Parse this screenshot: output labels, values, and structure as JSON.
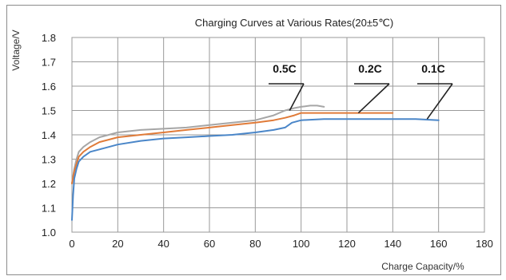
{
  "chart_data": {
    "type": "line",
    "title": "Charging Curves at Various Rates(20±5℃)",
    "xlabel": "Charge Capacity/%",
    "ylabel": "Voltage/V",
    "xlim": [
      0,
      180
    ],
    "ylim": [
      1.0,
      1.8
    ],
    "x_ticks": [
      "0",
      "20",
      "40",
      "60",
      "80",
      "100",
      "120",
      "140",
      "160",
      "180"
    ],
    "y_ticks": [
      "1.0",
      "1.1",
      "1.2",
      "1.3",
      "1.4",
      "1.5",
      "1.6",
      "1.7",
      "1.8"
    ],
    "grid": true,
    "series": [
      {
        "name": "0.5C",
        "color": "#a6a6a6",
        "x": [
          0,
          1,
          2,
          3,
          5,
          8,
          12,
          20,
          30,
          40,
          50,
          60,
          70,
          80,
          88,
          93,
          97,
          100,
          104,
          107,
          110
        ],
        "y": [
          1.2,
          1.26,
          1.3,
          1.33,
          1.35,
          1.37,
          1.39,
          1.41,
          1.42,
          1.425,
          1.43,
          1.44,
          1.45,
          1.46,
          1.48,
          1.5,
          1.51,
          1.515,
          1.52,
          1.52,
          1.515
        ]
      },
      {
        "name": "0.2C",
        "color": "#e07b39",
        "x": [
          0,
          1,
          2,
          3,
          5,
          8,
          12,
          20,
          30,
          40,
          50,
          60,
          70,
          80,
          88,
          93,
          97,
          100,
          110,
          120,
          130,
          140
        ],
        "y": [
          1.2,
          1.25,
          1.28,
          1.31,
          1.33,
          1.35,
          1.37,
          1.39,
          1.4,
          1.41,
          1.42,
          1.43,
          1.44,
          1.45,
          1.46,
          1.47,
          1.48,
          1.49,
          1.49,
          1.49,
          1.49,
          1.49
        ]
      },
      {
        "name": "0.1C",
        "color": "#4a86c8",
        "x": [
          0,
          0.5,
          1,
          2,
          3,
          5,
          8,
          12,
          20,
          30,
          40,
          50,
          60,
          70,
          80,
          88,
          93,
          96,
          100,
          110,
          120,
          130,
          140,
          150,
          160
        ],
        "y": [
          1.05,
          1.15,
          1.22,
          1.26,
          1.29,
          1.31,
          1.33,
          1.34,
          1.36,
          1.375,
          1.385,
          1.39,
          1.395,
          1.4,
          1.41,
          1.42,
          1.43,
          1.45,
          1.46,
          1.465,
          1.465,
          1.465,
          1.465,
          1.465,
          1.46
        ]
      }
    ],
    "series_labels": [
      {
        "text": "0.5C",
        "x": 95,
        "y": 1.5
      },
      {
        "text": "0.2C",
        "x": 125,
        "y": 1.49
      },
      {
        "text": "0.1C",
        "x": 155,
        "y": 1.465
      }
    ]
  }
}
